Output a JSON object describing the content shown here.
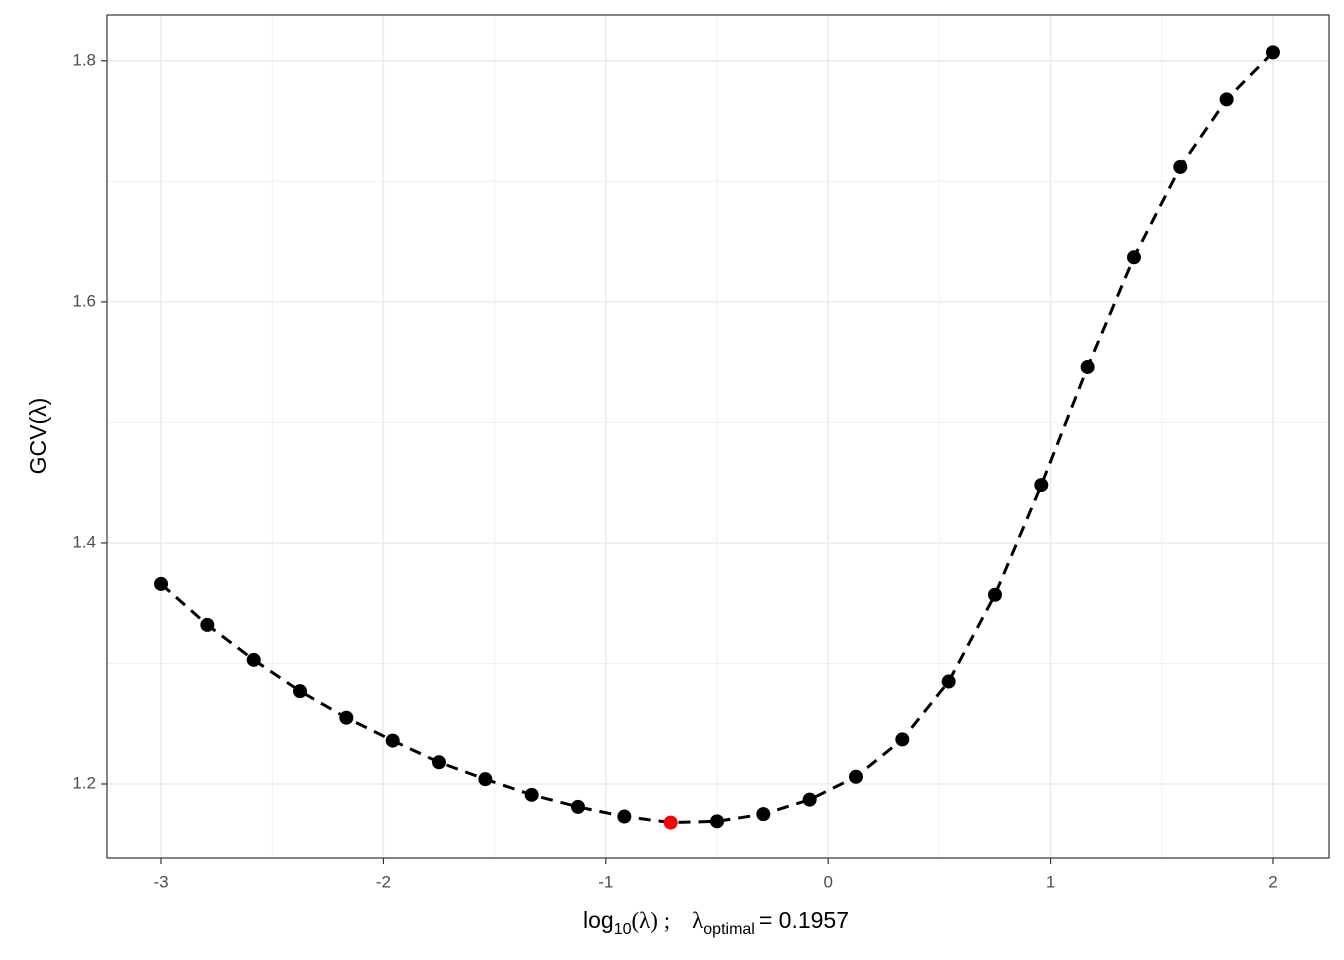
{
  "chart_data": {
    "type": "line",
    "x": [
      -3,
      -2.7917,
      -2.5833,
      -2.375,
      -2.1667,
      -1.9583,
      -1.75,
      -1.5417,
      -1.3333,
      -1.125,
      -0.9167,
      -0.7083,
      -0.5,
      -0.2917,
      -0.0833,
      0.125,
      0.3333,
      0.5417,
      0.75,
      0.9583,
      1.1667,
      1.375,
      1.5833,
      1.7917,
      2
    ],
    "values": [
      1.366,
      1.332,
      1.303,
      1.277,
      1.255,
      1.236,
      1.218,
      1.204,
      1.191,
      1.181,
      1.173,
      1.168,
      1.169,
      1.175,
      1.187,
      1.206,
      1.237,
      1.285,
      1.357,
      1.448,
      1.546,
      1.637,
      1.712,
      1.768,
      1.807
    ],
    "color": "#000000",
    "line_style": "dashed",
    "highlight_index": 11,
    "highlight_color": "#ff0000",
    "xlim": [
      -3.243,
      2.252
    ],
    "ylim": [
      1.1386,
      1.838
    ],
    "xticks": [
      -3,
      -2,
      -1,
      0,
      1,
      2
    ],
    "yticks": [
      1.2,
      1.4,
      1.6,
      1.8
    ],
    "x_minor_grid": [
      -2.5,
      -1.5,
      -0.5,
      0.5,
      1.5
    ],
    "y_minor_grid": [
      1.3,
      1.5,
      1.7
    ],
    "grid": true,
    "x_label": {
      "base": "log",
      "sub": "10",
      "rest": "(λ) ;",
      "lambda": "λ",
      "sub2": "optimal",
      "value_text": "= 0.1957"
    },
    "y_label": "GCV(λ)"
  }
}
